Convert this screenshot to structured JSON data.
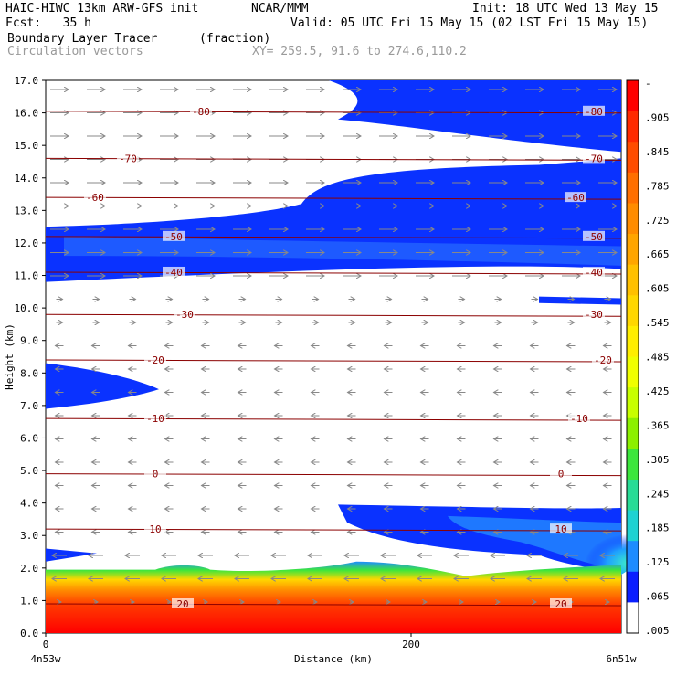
{
  "header": {
    "title_left": "HAIC-HIWC 13km ARW-GFS init",
    "title_center": "NCAR/MMM",
    "init": "Init: 18 UTC Wed 13 May 15",
    "fcst": "Fcst:   35 h",
    "valid": "Valid: 05 UTC Fri 15 May 15 (02 LST Fri 15 May 15)",
    "field": "Boundary Layer Tracer",
    "units": "(fraction)",
    "vectors": "Circulation vectors",
    "xy": "XY= 259.5, 91.6 to 274.6,110.2"
  },
  "chart_data": {
    "type": "heatmap",
    "ylabel": "Height (km)",
    "xlabel": "Distance (km)",
    "ylim": [
      0,
      17
    ],
    "xlim": [
      0,
      315
    ],
    "yticks": [
      "0.0",
      "1.0",
      "2.0",
      "3.0",
      "4.0",
      "5.0",
      "6.0",
      "7.0",
      "8.0",
      "9.0",
      "10.0",
      "11.0",
      "12.0",
      "13.0",
      "14.0",
      "15.0",
      "16.0",
      "17.0"
    ],
    "xticks": [
      {
        "value": 0,
        "label": "0"
      },
      {
        "value": 200,
        "label": "200"
      }
    ],
    "x_end_labels": {
      "left": "4n53w",
      "right": "6n51w"
    },
    "colorbar": {
      "labels": [
        "-",
        ".905",
        ".845",
        ".785",
        ".725",
        ".665",
        ".605",
        ".545",
        ".485",
        ".425",
        ".365",
        ".305",
        ".245",
        ".185",
        ".125",
        ".065",
        ".005"
      ],
      "colors": [
        "#ff0000",
        "#ff2a00",
        "#ff4d00",
        "#ff6f00",
        "#ff8c00",
        "#ffa500",
        "#ffc000",
        "#ffd700",
        "#ffee00",
        "#f0ff00",
        "#c8ff00",
        "#8cf000",
        "#3ce63c",
        "#28dc96",
        "#1ed2d2",
        "#1e8cff",
        "#0a1eff",
        "#ffffff"
      ]
    },
    "temperature_contours": [
      {
        "label": "-80",
        "height": 16.05,
        "label_positions": [
          85,
          300
        ]
      },
      {
        "label": "-70",
        "height": 14.6,
        "label_positions": [
          45,
          300
        ]
      },
      {
        "label": "-60",
        "height": 13.4,
        "label_positions": [
          27,
          290
        ]
      },
      {
        "label": "-50",
        "height": 12.2,
        "label_positions": [
          70,
          300
        ]
      },
      {
        "label": "-40",
        "height": 11.1,
        "label_positions": [
          70,
          300
        ]
      },
      {
        "label": "-30",
        "height": 9.8,
        "label_positions": [
          76,
          300
        ]
      },
      {
        "label": "-20",
        "height": 8.4,
        "label_positions": [
          60,
          305
        ]
      },
      {
        "label": "-10",
        "height": 6.6,
        "label_positions": [
          60,
          292
        ]
      },
      {
        "label": "0",
        "height": 4.9,
        "label_positions": [
          60,
          282
        ]
      },
      {
        "label": "10",
        "height": 3.2,
        "label_positions": [
          60,
          282
        ]
      },
      {
        "label": "20",
        "height": 0.9,
        "label_positions": [
          75,
          282
        ]
      }
    ],
    "tracer_regions": [
      {
        "description": "upper-level blue band",
        "level": "0.005-0.065",
        "x": [
          0,
          315
        ],
        "y": [
          10.8,
          17.0
        ]
      },
      {
        "description": "mid-level band",
        "level": "0.005-0.125",
        "x": [
          160,
          315
        ],
        "y": [
          2.0,
          3.9
        ]
      },
      {
        "description": "boundary layer",
        "level": "0.185-0.965",
        "x": [
          0,
          315
        ],
        "y": [
          0.0,
          2.0
        ]
      },
      {
        "description": "left mid-level patch",
        "level": "0.005-0.065",
        "x": [
          0,
          60
        ],
        "y": [
          7.0,
          8.3
        ]
      }
    ]
  }
}
